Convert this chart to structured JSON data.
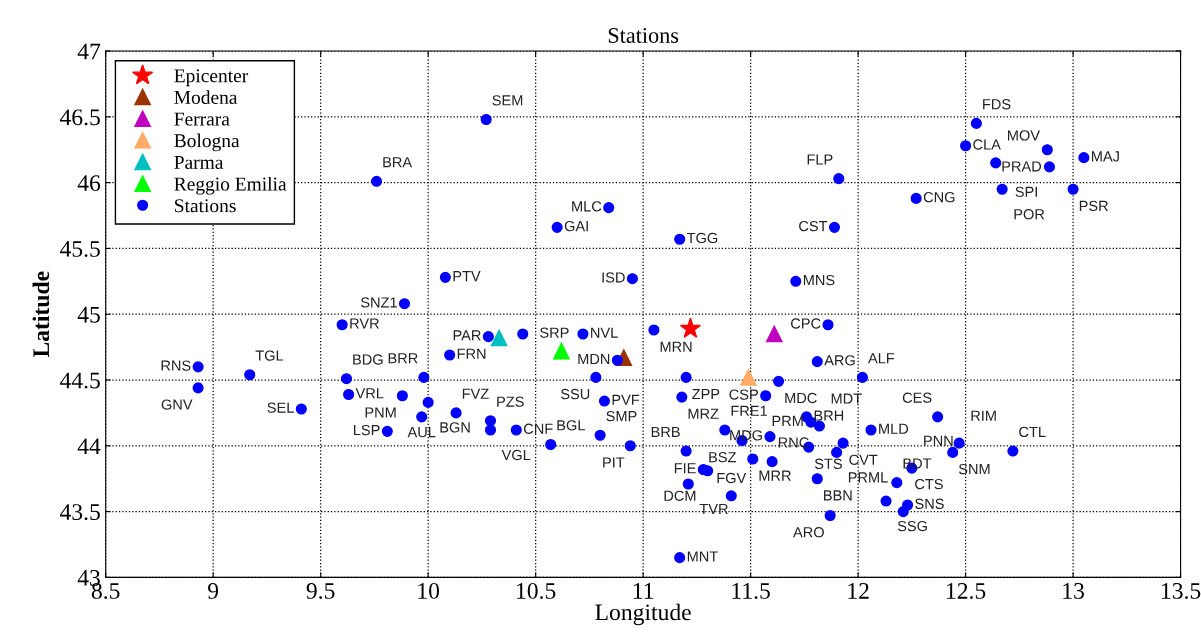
{
  "chart_data": {
    "type": "scatter",
    "title": "Stations",
    "xlabel": "Longitude",
    "ylabel": "Latitude",
    "xlim": [
      8.5,
      13.5
    ],
    "ylim": [
      43,
      47
    ],
    "xticks": [
      8.5,
      9,
      9.5,
      10,
      10.5,
      11,
      11.5,
      12,
      12.5,
      13,
      13.5
    ],
    "yticks": [
      43,
      43.5,
      44,
      44.5,
      45,
      45.5,
      46,
      46.5,
      47
    ],
    "grid": true,
    "legend": "top left",
    "series": [
      {
        "name": "Epicenter",
        "color": "#ff0000",
        "marker": "star",
        "x": [
          11.22
        ],
        "values": [
          44.89
        ]
      },
      {
        "name": "Modena",
        "color": "#993300",
        "marker": "triangle",
        "x": [
          10.91
        ],
        "values": [
          44.67
        ]
      },
      {
        "name": "Ferrara",
        "color": "#bf00bf",
        "marker": "triangle",
        "x": [
          11.61
        ],
        "values": [
          44.85
        ]
      },
      {
        "name": "Bologna",
        "color": "#ffaa66",
        "marker": "triangle",
        "x": [
          11.49
        ],
        "values": [
          44.52
        ]
      },
      {
        "name": "Parma",
        "color": "#00bfbf",
        "marker": "triangle",
        "x": [
          10.33
        ],
        "values": [
          44.82
        ]
      },
      {
        "name": "Reggio Emilia",
        "color": "#00ff00",
        "marker": "triangle",
        "x": [
          10.62
        ],
        "values": [
          44.72
        ]
      },
      {
        "name": "Stations",
        "color": "#0000ff",
        "marker": "circle",
        "x": [
          10.27,
          9.76,
          12.55,
          12.5,
          12.88,
          12.64,
          13.05,
          12.89,
          11.91,
          12.67,
          13.0,
          12.27,
          10.84,
          10.6,
          11.89,
          11.17,
          10.08,
          10.95,
          11.71,
          9.89,
          9.6,
          11.86,
          11.05,
          10.28,
          10.44,
          10.72,
          8.93,
          8.93,
          9.17,
          10.1,
          9.62,
          9.63,
          9.98,
          9.88,
          9.41,
          10.0,
          9.97,
          10.13,
          9.81,
          10.29,
          10.29,
          10.41,
          10.57,
          10.8,
          10.94,
          10.82,
          10.78,
          10.88,
          11.2,
          11.18,
          11.38,
          11.46,
          11.2,
          11.63,
          11.81,
          11.57,
          12.02,
          11.76,
          11.82,
          11.78,
          11.93,
          11.9,
          11.77,
          11.51,
          11.6,
          11.81,
          11.59,
          12.06,
          11.28,
          11.3,
          11.21,
          11.41,
          11.17,
          11.87,
          12.13,
          12.21,
          12.23,
          12.18,
          12.25,
          12.44,
          12.47,
          12.72,
          12.37
        ],
        "values": [
          46.48,
          46.01,
          46.45,
          46.28,
          46.25,
          46.15,
          46.19,
          46.12,
          46.03,
          45.95,
          45.95,
          45.88,
          45.81,
          45.66,
          45.66,
          45.57,
          45.28,
          45.27,
          45.25,
          45.08,
          44.92,
          44.92,
          44.88,
          44.83,
          44.85,
          44.85,
          44.6,
          44.44,
          44.54,
          44.69,
          44.51,
          44.39,
          44.52,
          44.38,
          44.28,
          44.33,
          44.22,
          44.25,
          44.11,
          44.19,
          44.12,
          44.12,
          44.01,
          44.08,
          44.0,
          44.34,
          44.52,
          44.65,
          44.52,
          44.37,
          44.12,
          44.04,
          43.96,
          44.49,
          44.64,
          44.38,
          44.52,
          44.22,
          44.15,
          44.18,
          44.02,
          43.95,
          43.99,
          43.9,
          43.88,
          43.75,
          44.07,
          44.12,
          43.82,
          43.81,
          43.71,
          43.62,
          43.15,
          43.47,
          43.58,
          43.5,
          43.55,
          43.72,
          43.83,
          43.95,
          44.02,
          43.96,
          44.22
        ],
        "value_labels": [
          "SEM",
          "BRA",
          "FDS",
          "CLA",
          "PRAD",
          "MOV",
          "MAJ",
          "SPI",
          "FLP",
          "POR",
          "PSR",
          "CNG",
          "MLC",
          "GAI",
          "CST",
          "TGG",
          "PTV",
          "ISD",
          "MNS",
          "SNZ1",
          "RVR",
          "CPC",
          "MRN",
          "PAR",
          "SRP",
          "NVL",
          "RNS",
          "GNV",
          "TGL",
          "FRN",
          "BDG",
          "VRL",
          "BRR",
          "PNM",
          "SEL",
          "BGN",
          "AUL",
          "FVZ",
          "LSP",
          "PZS",
          "VGL",
          "CNF",
          "BGL",
          "SMP",
          "PIT",
          "PVF",
          "SSU",
          "MDN",
          "ZPP",
          "MRZ",
          "FRE1",
          "BSZ",
          "BRB",
          "MDC",
          "ARG",
          "CSP",
          "ALF",
          "BRH",
          "MDT",
          "PRM",
          "CVT",
          "PRML",
          "STS",
          "MRR",
          "RNC",
          "BBN",
          "MDG",
          "MLD",
          "FIE",
          "DCM",
          "TVR",
          "FGV",
          "MNT",
          "ARO",
          "SSG",
          "CTS",
          "SNS",
          "BDT",
          "PNN",
          "SNM",
          "RIM",
          "CTL",
          "CES"
        ]
      }
    ]
  }
}
